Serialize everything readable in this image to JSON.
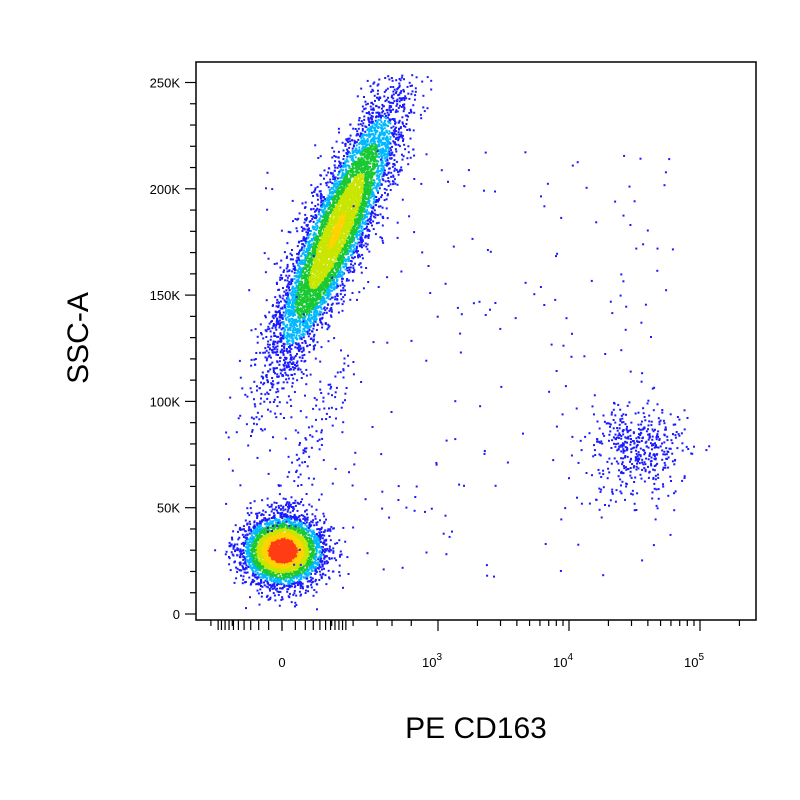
{
  "chart_data": {
    "type": "scatter",
    "title": "",
    "xlabel": "PE CD163",
    "ylabel": "SSC-A",
    "x_scale": "biexponential",
    "x_tick_labels": [
      {
        "text": "0",
        "value": 0
      },
      {
        "base": "10",
        "exp": "3",
        "value": 1000
      },
      {
        "base": "10",
        "exp": "4",
        "value": 10000
      },
      {
        "base": "10",
        "exp": "5",
        "value": 100000
      }
    ],
    "y_tick_labels": [
      "0",
      "50K",
      "100K",
      "150K",
      "200K",
      "250K"
    ],
    "y_tick_values": [
      0,
      50000,
      100000,
      150000,
      200000,
      250000
    ],
    "ylim": [
      0,
      262144
    ],
    "grid": false,
    "legend": "none",
    "colormap": [
      "#1a1aff",
      "#00b8ff",
      "#19c832",
      "#c8e600",
      "#ff3c14"
    ],
    "populations": [
      {
        "center": {
          "x": 0,
          "y": 30000
        },
        "approx_events": 4200,
        "color": "red-core"
      },
      {
        "center": {
          "x": 200,
          "y": 180000
        },
        "approx_events": 6500,
        "color": "green-core"
      },
      {
        "center": {
          "x": 30000,
          "y": 80000
        },
        "approx_events": 450,
        "color": "blue"
      }
    ]
  }
}
